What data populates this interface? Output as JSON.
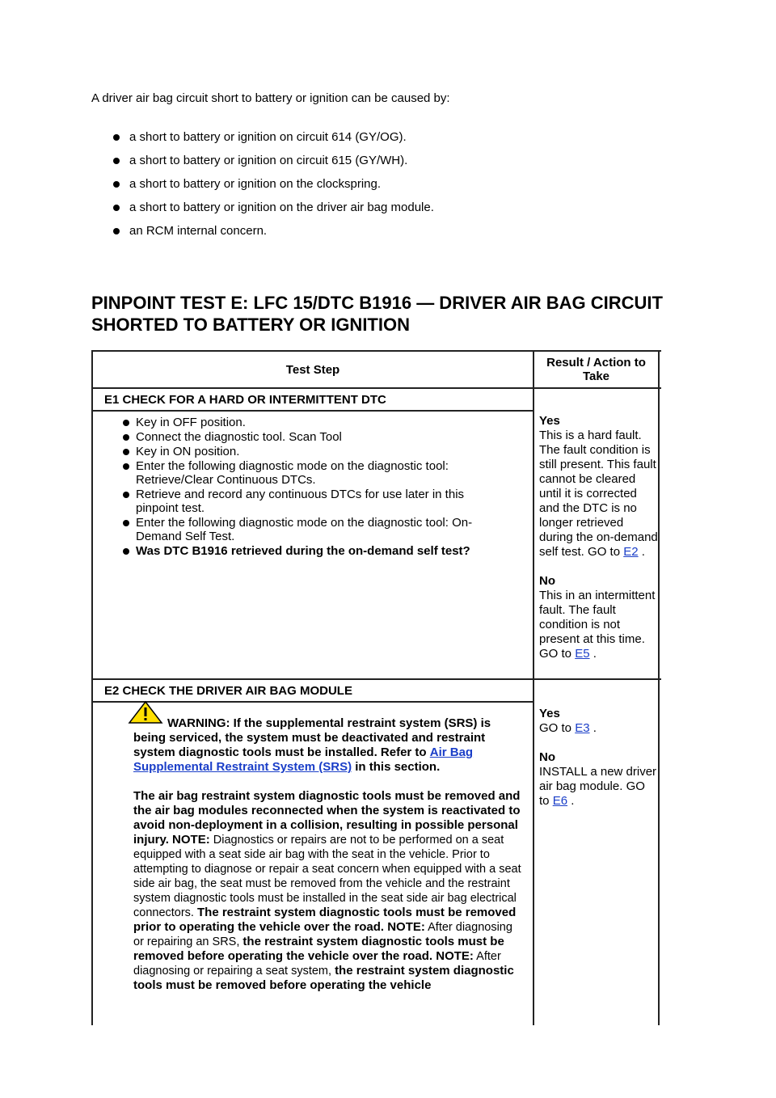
{
  "intro": "A driver air bag circuit short to battery or ignition can be caused by:",
  "causes": [
    "a short to battery or ignition on circuit 614 (GY/OG).",
    "a short to battery or ignition on circuit 615 (GY/WH).",
    "a short to battery or ignition on the clockspring.",
    "a short to battery or ignition on the driver air bag module.",
    "an RCM internal concern."
  ],
  "heading": "PINPOINT TEST E: LFC 15/DTC B1916 — DRIVER AIR BAG CIRCUIT SHORTED TO BATTERY OR IGNITION",
  "table": {
    "headers": [
      "Test Step",
      "Result / Action to Take"
    ],
    "steps": [
      {
        "title": "E1 CHECK FOR A HARD OR INTERMITTENT DTC",
        "actions": [
          "Key in OFF position.",
          "Connect the diagnostic tool. Scan Tool",
          "Key in ON position.",
          "Enter the following diagnostic mode on the diagnostic tool: Retrieve/Clear Continuous DTCs.",
          "Retrieve and record any continuous DTCs for use later in this pinpoint test.",
          "Enter the following diagnostic mode on the diagnostic tool: On-Demand Self Test."
        ],
        "question": "Was DTC B1916 retrieved during the on-demand self test?",
        "results": [
          {
            "label": "Yes",
            "text": "This is a hard fault. The fault condition is still present. This fault cannot be cleared until it is corrected and the DTC is no longer retrieved during the on-demand self test. GO to",
            "link": "E2",
            "end": "."
          },
          {
            "label": "No",
            "text": "This in an intermittent fault. The fault condition is not present at this time. GO to",
            "link": "E5",
            "end": "."
          }
        ]
      },
      {
        "title": "E2 CHECK THE DRIVER AIR BAG MODULE",
        "warning": [
          {
            "text": "WARNING: If the supplemental restraint system (SRS) is being serviced, the system must be deactivated and restraint system diagnostic tools must be installed. Refer to",
            "bold": true
          },
          {
            "text": "Air Bag Supplemental Restraint System (SRS)",
            "link": true
          },
          {
            "text": "in this section.",
            "bold": true
          }
        ],
        "notes": [
          {
            "text": "The air bag restraint system diagnostic tools must be removed and the air bag modules reconnected when the system is reactivated to avoid non-deployment in a collision, resulting in possible personal injury. NOTE:",
            "bold": true
          },
          {
            "text": "Diagnostics or repairs are not to be performed on a seat equipped with a seat side air bag with the seat in the vehicle. Prior to attempting to diagnose or repair a seat concern when equipped with a seat side air bag, the seat must be removed from the vehicle and the restraint system diagnostic tools must be installed in the seat side air bag electrical connectors.",
            "bold": false
          },
          {
            "text": "The restraint system diagnostic tools must be removed prior to operating the vehicle over the road. NOTE:",
            "bold": true
          },
          {
            "text": "After diagnosing or repairing an SRS,",
            "bold": false
          },
          {
            "text": "the restraint system diagnostic tools must be removed before operating the vehicle over the road. NOTE:",
            "bold": true
          },
          {
            "text": "After diagnosing or repairing a seat system,",
            "bold": false
          },
          {
            "text": "the restraint system diagnostic tools must be removed before operating the vehicle",
            "bold": true
          }
        ],
        "results": [
          {
            "label": "Yes",
            "text": "GO to",
            "link": "E3",
            "end": "."
          },
          {
            "label": "No",
            "text": "INSTALL a new driver air bag module. GO to",
            "link": "E6",
            "end": "."
          }
        ]
      }
    ]
  }
}
